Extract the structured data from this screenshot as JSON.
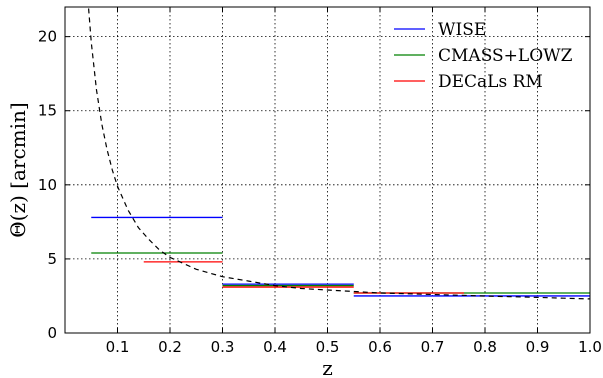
{
  "chart_data": {
    "type": "line",
    "title": "",
    "xlabel": "z",
    "ylabel": "Θ(z) [arcmin]",
    "xlim": [
      0.0,
      1.0
    ],
    "ylim": [
      0,
      22
    ],
    "xticks": [
      0.1,
      0.2,
      0.3,
      0.4,
      0.5,
      0.6,
      0.7,
      0.8,
      0.9,
      1.0
    ],
    "xtick_labels": [
      "0.1",
      "0.2",
      "0.3",
      "0.4",
      "0.5",
      "0.6",
      "0.7",
      "0.8",
      "0.9",
      "1.0"
    ],
    "yticks": [
      0,
      5,
      10,
      15,
      20
    ],
    "ytick_labels": [
      "0",
      "5",
      "10",
      "15",
      "20"
    ],
    "grid": true,
    "legend_position": "top-right",
    "series": [
      {
        "name": "WISE",
        "color": "#0000ff",
        "style": "step",
        "segments": [
          {
            "x": [
              0.05,
              0.3
            ],
            "y": 7.8
          },
          {
            "x": [
              0.3,
              0.55
            ],
            "y": 3.3
          },
          {
            "x": [
              0.55,
              1.0
            ],
            "y": 2.5
          }
        ]
      },
      {
        "name": "CMASS+LOWZ",
        "color": "#008000",
        "style": "step",
        "segments": [
          {
            "x": [
              0.05,
              0.3
            ],
            "y": 5.4
          },
          {
            "x": [
              0.3,
              0.55
            ],
            "y": 3.2
          },
          {
            "x": [
              0.55,
              1.0
            ],
            "y": 2.7
          }
        ]
      },
      {
        "name": "DECaLs RM",
        "color": "#ff0000",
        "style": "step",
        "segments": [
          {
            "x": [
              0.15,
              0.3
            ],
            "y": 4.8
          },
          {
            "x": [
              0.3,
              0.55
            ],
            "y": 3.1
          },
          {
            "x": [
              0.55,
              0.76
            ],
            "y": 2.7
          }
        ]
      },
      {
        "name": "",
        "color": "#000000",
        "style": "dashed",
        "x": [
          0.045,
          0.05,
          0.06,
          0.07,
          0.08,
          0.09,
          0.1,
          0.12,
          0.14,
          0.16,
          0.18,
          0.2,
          0.25,
          0.3,
          0.35,
          0.4,
          0.45,
          0.5,
          0.55,
          0.6,
          0.65,
          0.7,
          0.75,
          0.8,
          0.85,
          0.9,
          0.95,
          1.0
        ],
        "y": [
          21.9,
          19.6,
          16.4,
          14.1,
          12.4,
          11.0,
          9.9,
          8.3,
          7.1,
          6.3,
          5.6,
          5.1,
          4.3,
          3.8,
          3.5,
          3.2,
          3.0,
          2.9,
          2.8,
          2.7,
          2.65,
          2.6,
          2.55,
          2.5,
          2.45,
          2.4,
          2.35,
          2.3
        ]
      }
    ]
  }
}
